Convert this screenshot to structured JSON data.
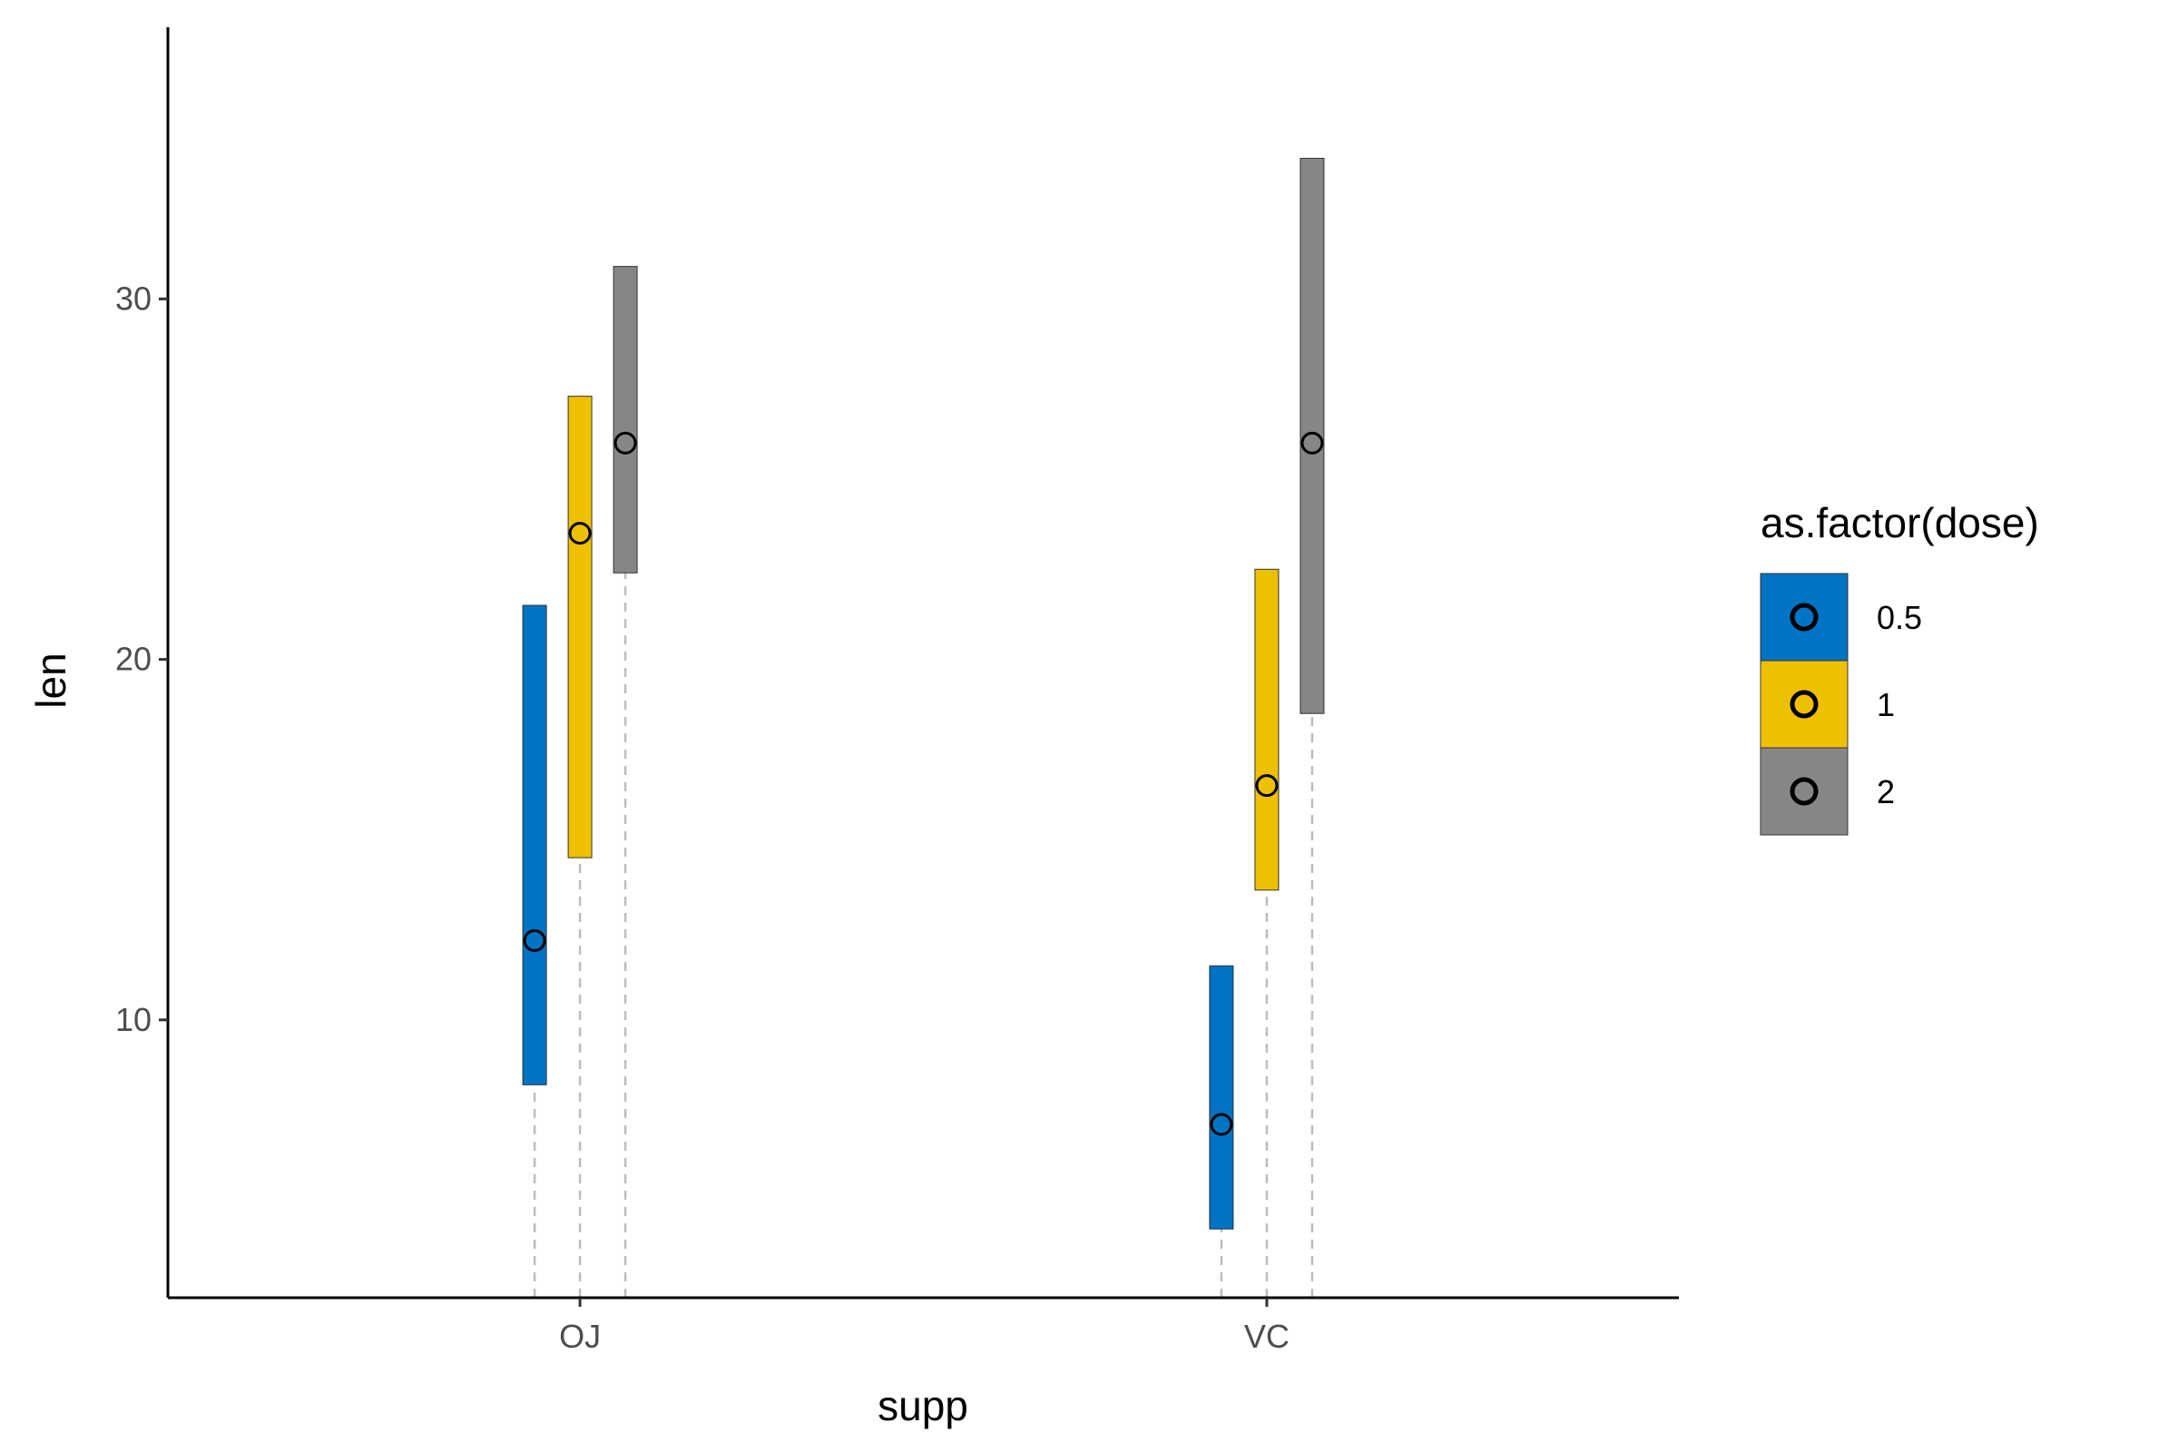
{
  "chart_data": {
    "type": "crossbar",
    "xlabel": "supp",
    "ylabel": "len",
    "categories": [
      "OJ",
      "VC"
    ],
    "ylim": [
      3.3,
      35.9
    ],
    "y_ticks": [
      "10",
      "20",
      "30"
    ],
    "grid": false,
    "legend": {
      "title": "as.factor(dose)",
      "placement": "right",
      "items": [
        {
          "label": "0.5",
          "color": "#0073C2"
        },
        {
          "label": "1",
          "color": "#EFC000"
        },
        {
          "label": "2",
          "color": "#868686"
        }
      ]
    },
    "series": [
      {
        "name": "0.5",
        "color": "#0073C2",
        "points": [
          {
            "category": "OJ",
            "lower": 8.2,
            "middle": 12.2,
            "upper": 21.5,
            "min": 3.3
          },
          {
            "category": "VC",
            "lower": 4.2,
            "middle": 7.1,
            "upper": 11.5,
            "min": 3.3
          }
        ]
      },
      {
        "name": "1",
        "color": "#EFC000",
        "points": [
          {
            "category": "OJ",
            "lower": 14.5,
            "middle": 23.5,
            "upper": 27.3,
            "min": 3.3
          },
          {
            "category": "VC",
            "lower": 13.6,
            "middle": 16.5,
            "upper": 22.5,
            "min": 3.3
          }
        ]
      },
      {
        "name": "2",
        "color": "#868686",
        "points": [
          {
            "category": "OJ",
            "lower": 22.4,
            "middle": 26.0,
            "upper": 30.9,
            "min": 3.3
          },
          {
            "category": "VC",
            "lower": 18.5,
            "middle": 26.0,
            "upper": 33.9,
            "min": 3.3
          }
        ]
      }
    ]
  }
}
